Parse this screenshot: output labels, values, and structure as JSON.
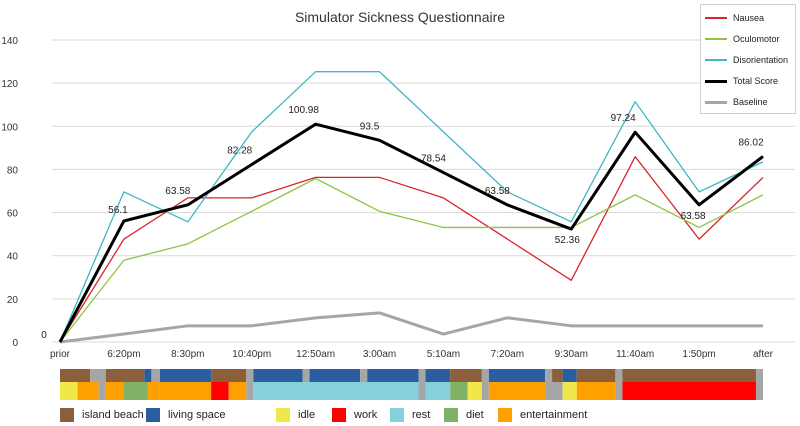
{
  "chart_data": {
    "type": "line",
    "title": "Simulator Sickness Questionnaire",
    "categories": [
      "prior",
      "6:20pm",
      "8:30pm",
      "10:40pm",
      "12:50am",
      "3:00am",
      "5:10am",
      "7:20am",
      "9:30am",
      "11:40am",
      "1:50pm",
      "after"
    ],
    "ylim": [
      0,
      140
    ],
    "yticks": [
      0,
      20,
      40,
      60,
      80,
      100,
      120,
      140
    ],
    "grid": true,
    "legend_position": "top-right",
    "series": [
      {
        "name": "Nausea",
        "color": "#d7262b",
        "values": [
          0,
          47.7,
          66.8,
          66.8,
          76.3,
          76.3,
          66.8,
          47.7,
          28.6,
          85.9,
          47.7,
          76.3
        ]
      },
      {
        "name": "Oculomotor",
        "color": "#8dc442",
        "values": [
          0,
          37.9,
          45.5,
          60.6,
          75.8,
          60.6,
          53.1,
          53.1,
          53.1,
          68.2,
          53.1,
          68.2
        ]
      },
      {
        "name": "Disorientation",
        "color": "#3fb8c4",
        "values": [
          0,
          69.6,
          55.7,
          97.4,
          125.3,
          125.3,
          97.4,
          69.6,
          55.7,
          111.4,
          69.6,
          83.5
        ]
      },
      {
        "name": "Total Score",
        "color": "#000000",
        "values": [
          0,
          56.1,
          63.58,
          82.28,
          100.98,
          93.5,
          78.54,
          63.58,
          52.36,
          97.24,
          63.58,
          86.02
        ]
      },
      {
        "name": "Baseline",
        "color": "#a6a6a6",
        "values": [
          0,
          3.7,
          7.5,
          7.5,
          11.2,
          13.5,
          3.7,
          11.2,
          7.5,
          7.5,
          7.5,
          7.5
        ]
      }
    ],
    "data_labels": [
      {
        "category": "prior",
        "text": "0"
      },
      {
        "category": "6:20pm",
        "text": "56.1"
      },
      {
        "category": "8:30pm",
        "text": "63.58"
      },
      {
        "category": "10:40pm",
        "text": "82.28"
      },
      {
        "category": "12:50am",
        "text": "100.98"
      },
      {
        "category": "3:00am",
        "text": "93.5"
      },
      {
        "category": "5:10am",
        "text": "78.54"
      },
      {
        "category": "7:20am",
        "text": "63.58"
      },
      {
        "category": "9:30am",
        "text": "52.36"
      },
      {
        "category": "11:40am",
        "text": "97.24"
      },
      {
        "category": "1:50pm",
        "text": "63.58"
      },
      {
        "category": "after",
        "text": "86.02"
      }
    ],
    "activity_bar": {
      "segments_location": [
        {
          "start": 0,
          "end": 4.3,
          "type": "island beach"
        },
        {
          "start": 4.3,
          "end": 6.5,
          "type": "gap"
        },
        {
          "start": 6.5,
          "end": 12.0,
          "type": "island beach"
        },
        {
          "start": 12.0,
          "end": 13.0,
          "type": "living space"
        },
        {
          "start": 13.0,
          "end": 14.2,
          "type": "gap"
        },
        {
          "start": 14.2,
          "end": 21.5,
          "type": "living space"
        },
        {
          "start": 21.5,
          "end": 26.5,
          "type": "island beach"
        },
        {
          "start": 26.5,
          "end": 27.5,
          "type": "gap"
        },
        {
          "start": 27.5,
          "end": 34.5,
          "type": "living space"
        },
        {
          "start": 34.5,
          "end": 35.5,
          "type": "gap"
        },
        {
          "start": 35.5,
          "end": 42.7,
          "type": "living space"
        },
        {
          "start": 42.7,
          "end": 43.7,
          "type": "gap"
        },
        {
          "start": 43.7,
          "end": 51.0,
          "type": "living space"
        },
        {
          "start": 51.0,
          "end": 52.0,
          "type": "gap"
        },
        {
          "start": 52.0,
          "end": 55.5,
          "type": "living space"
        },
        {
          "start": 55.5,
          "end": 60.0,
          "type": "island beach"
        },
        {
          "start": 60.0,
          "end": 61.0,
          "type": "gap"
        },
        {
          "start": 61.0,
          "end": 69.0,
          "type": "living space"
        },
        {
          "start": 69.0,
          "end": 70.0,
          "type": "gap"
        },
        {
          "start": 70.0,
          "end": 71.5,
          "type": "island beach"
        },
        {
          "start": 71.5,
          "end": 73.5,
          "type": "living space"
        },
        {
          "start": 73.5,
          "end": 79.0,
          "type": "island beach"
        },
        {
          "start": 79.0,
          "end": 80.0,
          "type": "gap"
        },
        {
          "start": 80.0,
          "end": 99.0,
          "type": "island beach"
        },
        {
          "start": 99.0,
          "end": 100,
          "type": "gap"
        }
      ],
      "segments_activity": [
        {
          "start": 0,
          "end": 2.5,
          "type": "idle"
        },
        {
          "start": 2.5,
          "end": 5.5,
          "type": "entertainment"
        },
        {
          "start": 5.5,
          "end": 6.5,
          "type": "gap"
        },
        {
          "start": 6.5,
          "end": 9.0,
          "type": "entertainment"
        },
        {
          "start": 9.0,
          "end": 12.5,
          "type": "diet"
        },
        {
          "start": 12.5,
          "end": 14.2,
          "type": "entertainment"
        },
        {
          "start": 14.2,
          "end": 21.5,
          "type": "entertainment"
        },
        {
          "start": 21.5,
          "end": 24.0,
          "type": "work"
        },
        {
          "start": 24.0,
          "end": 26.5,
          "type": "entertainment"
        },
        {
          "start": 26.5,
          "end": 27.5,
          "type": "gap"
        },
        {
          "start": 27.5,
          "end": 51.0,
          "type": "rest"
        },
        {
          "start": 51.0,
          "end": 52.0,
          "type": "gap"
        },
        {
          "start": 52.0,
          "end": 55.5,
          "type": "rest"
        },
        {
          "start": 55.5,
          "end": 58.0,
          "type": "diet"
        },
        {
          "start": 58.0,
          "end": 60.0,
          "type": "idle"
        },
        {
          "start": 60.0,
          "end": 61.0,
          "type": "gap"
        },
        {
          "start": 61.0,
          "end": 69.0,
          "type": "entertainment"
        },
        {
          "start": 69.0,
          "end": 71.5,
          "type": "gap"
        },
        {
          "start": 71.5,
          "end": 73.5,
          "type": "idle"
        },
        {
          "start": 73.5,
          "end": 79.0,
          "type": "entertainment"
        },
        {
          "start": 79.0,
          "end": 80.0,
          "type": "gap"
        },
        {
          "start": 80.0,
          "end": 99.0,
          "type": "work"
        },
        {
          "start": 99.0,
          "end": 100,
          "type": "gap"
        }
      ],
      "colors": {
        "island beach": "#8b5e3c",
        "living space": "#2a5ea0",
        "idle": "#f0e84a",
        "work": "#ff0000",
        "rest": "#86cfdc",
        "diet": "#7fb267",
        "entertainment": "#ffa000",
        "gap": "#a6a6a6"
      }
    },
    "bottom_legend": [
      {
        "label": "island beach",
        "color": "#8b5e3c"
      },
      {
        "label": "living space",
        "color": "#2a5ea0"
      },
      {
        "label": "idle",
        "color": "#f0e84a"
      },
      {
        "label": "work",
        "color": "#ff0000"
      },
      {
        "label": "rest",
        "color": "#86cfdc"
      },
      {
        "label": "diet",
        "color": "#7fb267"
      },
      {
        "label": "entertainment",
        "color": "#ffa000"
      }
    ]
  }
}
